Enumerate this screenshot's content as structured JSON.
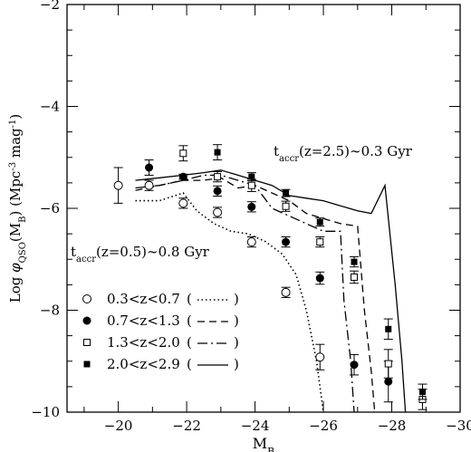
{
  "chart_data": {
    "type": "line",
    "xlabel_main": "M",
    "xlabel_sub": "B",
    "ylabel": "Log φ_QSO(M_B) (Mpc^-3 mag^-1)",
    "ylabel_parts": {
      "a": "Log ",
      "phi": "φ",
      "sub1": "QSO",
      "b": "(M",
      "sub2": "B",
      "c": ") (Mpc",
      "sup1": "-3",
      "d": " mag",
      "sup2": "-1",
      "e": ")"
    },
    "xlim": [
      -18.5,
      -30
    ],
    "ylim": [
      -10,
      -2
    ],
    "xticks": [
      -20,
      -22,
      -24,
      -26,
      -28,
      -30
    ],
    "xticklabels": [
      "−20",
      "−22",
      "−24",
      "−26",
      "−28",
      "−30"
    ],
    "yticks": [
      -10,
      -8,
      -6,
      -4,
      -2
    ],
    "yticklabels": [
      "−10",
      "−8",
      "−6",
      "−4",
      "−2"
    ],
    "annotations": [
      {
        "text_main": "t",
        "text_sub": "accr",
        "text_rest": "(z=2.5)∼0.3 Gyr"
      },
      {
        "text_main": "t",
        "text_sub": "accr",
        "text_rest": "(z=0.5)∼0.8 Gyr"
      }
    ],
    "legend_position": "bottom-left",
    "series": [
      {
        "name": "0.3<z<0.7",
        "marker": "open-circle",
        "line_style": "dotted",
        "points": [
          {
            "x": -20.0,
            "y": -5.55,
            "err": 0.35
          },
          {
            "x": -20.9,
            "y": -5.55,
            "err": 0.1
          },
          {
            "x": -21.9,
            "y": -5.9,
            "err": 0.1
          },
          {
            "x": -22.9,
            "y": -6.08,
            "err": 0.1
          },
          {
            "x": -23.9,
            "y": -6.66,
            "err": 0.1
          },
          {
            "x": -24.9,
            "y": -7.65,
            "err": 0.1
          },
          {
            "x": -25.9,
            "y": -8.92,
            "err": 0.25
          }
        ],
        "model": [
          [
            -20.5,
            -5.85
          ],
          [
            -21.2,
            -5.85
          ],
          [
            -21.9,
            -5.7
          ],
          [
            -22.3,
            -6.05
          ],
          [
            -22.8,
            -6.3
          ],
          [
            -23.3,
            -6.45
          ],
          [
            -23.8,
            -6.5
          ],
          [
            -24.3,
            -6.65
          ],
          [
            -24.8,
            -6.9
          ],
          [
            -25.2,
            -7.3
          ],
          [
            -25.5,
            -8.0
          ],
          [
            -25.8,
            -9.0
          ],
          [
            -26.0,
            -10.0
          ]
        ]
      },
      {
        "name": "0.7<z<1.3",
        "marker": "filled-circle",
        "line_style": "dashed",
        "points": [
          {
            "x": -20.9,
            "y": -5.2,
            "err": 0.15
          },
          {
            "x": -21.9,
            "y": -5.38,
            "err": 0.05
          },
          {
            "x": -22.9,
            "y": -5.66,
            "err": 0.1
          },
          {
            "x": -23.9,
            "y": -5.97,
            "err": 0.1
          },
          {
            "x": -24.9,
            "y": -6.66,
            "err": 0.1
          },
          {
            "x": -25.9,
            "y": -7.37,
            "err": 0.12
          },
          {
            "x": -26.9,
            "y": -9.07,
            "err": 0.2
          },
          {
            "x": -27.9,
            "y": -9.4,
            "err": 0.4
          }
        ],
        "model": [
          [
            -20.5,
            -5.65
          ],
          [
            -21.2,
            -5.55
          ],
          [
            -21.9,
            -5.45
          ],
          [
            -22.5,
            -5.45
          ],
          [
            -23.0,
            -5.4
          ],
          [
            -23.5,
            -5.6
          ],
          [
            -24.0,
            -5.55
          ],
          [
            -24.5,
            -5.7
          ],
          [
            -25.0,
            -5.85
          ],
          [
            -25.5,
            -6.1
          ],
          [
            -26.0,
            -6.2
          ],
          [
            -26.5,
            -6.3
          ],
          [
            -27.0,
            -6.35
          ],
          [
            -27.2,
            -8.0
          ],
          [
            -27.4,
            -9.2
          ],
          [
            -27.5,
            -10.0
          ]
        ]
      },
      {
        "name": "1.3<z<2.0",
        "marker": "open-square",
        "line_style": "dash-dot",
        "points": [
          {
            "x": -21.9,
            "y": -4.92,
            "err": 0.15
          },
          {
            "x": -22.9,
            "y": -5.38,
            "err": 0.1
          },
          {
            "x": -23.9,
            "y": -5.55,
            "err": 0.12
          },
          {
            "x": -24.9,
            "y": -5.96,
            "err": 0.1
          },
          {
            "x": -25.9,
            "y": -6.66,
            "err": 0.1
          },
          {
            "x": -26.9,
            "y": -7.35,
            "err": 0.12
          },
          {
            "x": -27.9,
            "y": -9.05,
            "err": 0.28
          },
          {
            "x": -28.9,
            "y": -9.75,
            "err": 0.2
          }
        ],
        "model": [
          [
            -20.5,
            -5.6
          ],
          [
            -21.2,
            -5.55
          ],
          [
            -21.9,
            -5.45
          ],
          [
            -22.5,
            -5.35
          ],
          [
            -23.0,
            -5.35
          ],
          [
            -23.5,
            -5.45
          ],
          [
            -24.0,
            -5.55
          ],
          [
            -24.5,
            -6.0
          ],
          [
            -25.0,
            -6.15
          ],
          [
            -25.5,
            -6.3
          ],
          [
            -26.0,
            -6.45
          ],
          [
            -26.5,
            -6.45
          ],
          [
            -26.6,
            -7.8
          ],
          [
            -26.8,
            -9.0
          ],
          [
            -26.9,
            -10.0
          ]
        ]
      },
      {
        "name": "2.0<z<2.9",
        "marker": "filled-square",
        "line_style": "solid",
        "points": [
          {
            "x": -22.9,
            "y": -4.9,
            "err": 0.15
          },
          {
            "x": -23.9,
            "y": -5.38,
            "err": 0.08
          },
          {
            "x": -24.9,
            "y": -5.7,
            "err": 0.07
          },
          {
            "x": -25.9,
            "y": -6.27,
            "err": 0.08
          },
          {
            "x": -26.9,
            "y": -7.05,
            "err": 0.1
          },
          {
            "x": -27.9,
            "y": -8.37,
            "err": 0.2
          },
          {
            "x": -28.9,
            "y": -9.6,
            "err": 0.15
          }
        ],
        "model": [
          [
            -20.5,
            -5.45
          ],
          [
            -21.2,
            -5.4
          ],
          [
            -21.9,
            -5.35
          ],
          [
            -22.5,
            -5.3
          ],
          [
            -23.0,
            -5.25
          ],
          [
            -23.5,
            -5.35
          ],
          [
            -24.0,
            -5.45
          ],
          [
            -24.5,
            -5.55
          ],
          [
            -25.0,
            -5.75
          ],
          [
            -25.5,
            -5.8
          ],
          [
            -26.0,
            -5.85
          ],
          [
            -26.5,
            -5.95
          ],
          [
            -27.0,
            -6.05
          ],
          [
            -27.4,
            -6.1
          ],
          [
            -27.8,
            -5.55
          ],
          [
            -28.1,
            -7.5
          ],
          [
            -28.3,
            -9.0
          ],
          [
            -28.4,
            -10.0
          ]
        ]
      }
    ]
  }
}
